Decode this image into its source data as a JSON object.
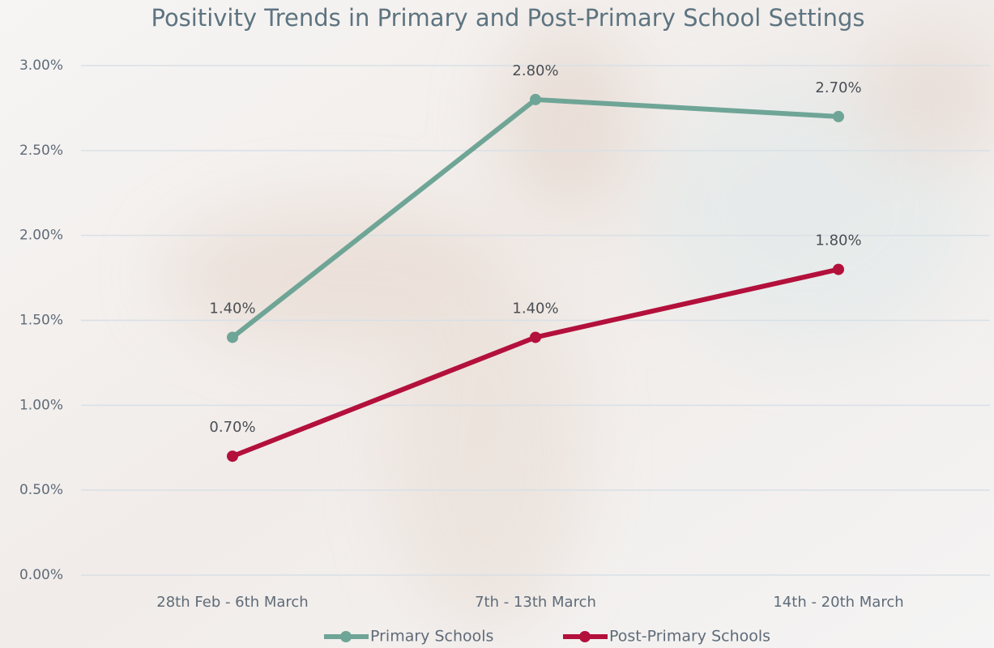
{
  "chart_data": {
    "type": "line",
    "title": "Positivity Trends in Primary and Post-Primary School Settings",
    "categories": [
      "28th Feb - 6th March",
      "7th - 13th March",
      "14th - 20th March"
    ],
    "series": [
      {
        "name": "Primary Schools",
        "color": "#6fa596",
        "values": [
          1.4,
          2.8,
          2.7
        ],
        "value_labels": [
          "1.40%",
          "2.80%",
          "2.70%"
        ]
      },
      {
        "name": "Post-Primary Schools",
        "color": "#b3103c",
        "values": [
          0.7,
          1.4,
          1.8
        ],
        "value_labels": [
          "0.70%",
          "1.40%",
          "1.80%"
        ]
      }
    ],
    "ylim": [
      0,
      3
    ],
    "yticks": [
      {
        "value": 0,
        "label": "0.00%"
      },
      {
        "value": 0.5,
        "label": "0.50%"
      },
      {
        "value": 1,
        "label": "1.00%"
      },
      {
        "value": 1.5,
        "label": "1.50%"
      },
      {
        "value": 2,
        "label": "2.00%"
      },
      {
        "value": 2.5,
        "label": "2.50%"
      },
      {
        "value": 3,
        "label": "3.00%"
      }
    ],
    "grid": true,
    "legend": "bottom"
  }
}
